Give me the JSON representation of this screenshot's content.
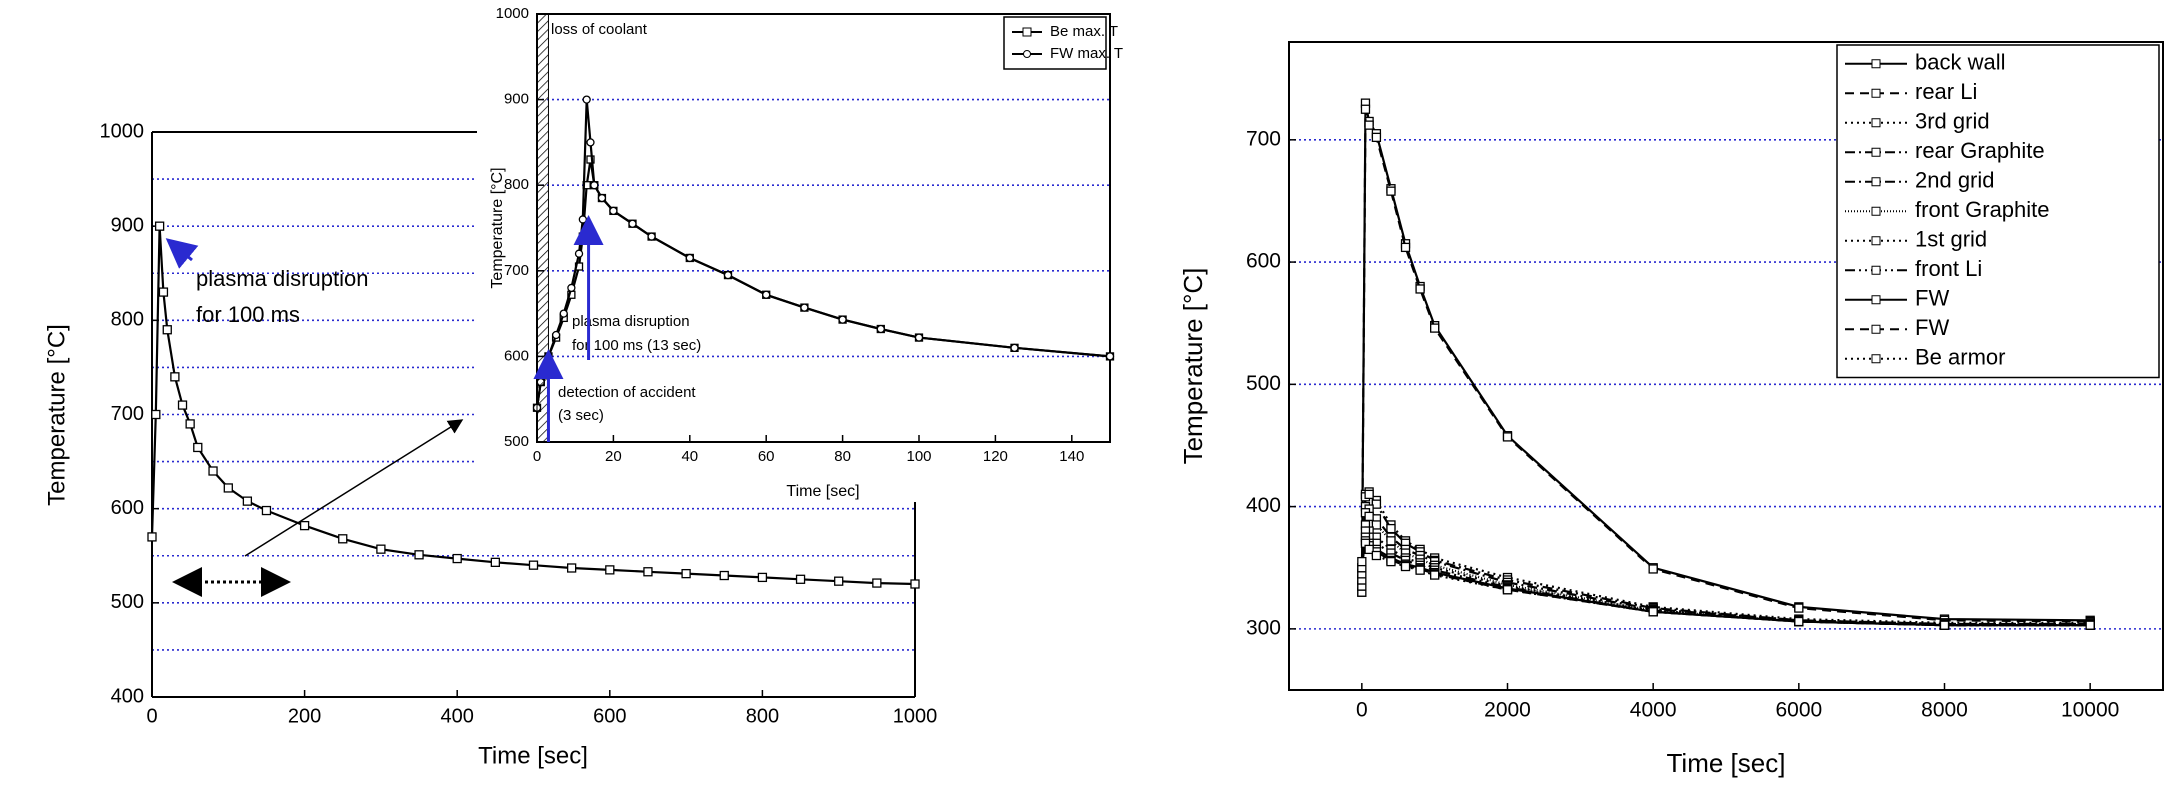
{
  "chart_data": [
    {
      "type": "line",
      "xlabel": "Time [sec]",
      "ylabel": "Temperature [°C]",
      "annotations": [
        "plasma disruption",
        "for 100 ms"
      ],
      "x": [
        0,
        5,
        10,
        15,
        20,
        30,
        40,
        50,
        60,
        80,
        100,
        125,
        150,
        200,
        250,
        300,
        350,
        400,
        450,
        500,
        550,
        600,
        650,
        700,
        750,
        800,
        850,
        900,
        950,
        1000
      ],
      "values": [
        570,
        700,
        900,
        830,
        790,
        740,
        710,
        690,
        665,
        640,
        622,
        608,
        598,
        582,
        568,
        557,
        551,
        547,
        543,
        540,
        537,
        535,
        533,
        531,
        529,
        527,
        525,
        523,
        521,
        520
      ],
      "color": "#000000",
      "xlim": [
        0,
        1000
      ],
      "xticks": [
        0,
        200,
        400,
        600,
        800,
        1000
      ],
      "ylim": [
        400,
        1000
      ],
      "yticks": [
        400,
        500,
        600,
        700,
        800,
        900,
        1000
      ],
      "ygrid": [
        450,
        500,
        550,
        600,
        650,
        700,
        750,
        800,
        850,
        900,
        950
      ]
    },
    {
      "type": "line",
      "xlabel": "Time [sec]",
      "ylabel": "Temperature [°C]",
      "annotations": [
        "loss of coolant",
        "plasma disruption",
        "for 100 ms (13 sec)",
        "detection of accident",
        "(3 sec)"
      ],
      "x": [
        0,
        1,
        3,
        5,
        7,
        9,
        11,
        12,
        13,
        14,
        15,
        17,
        20,
        25,
        30,
        40,
        50,
        60,
        70,
        80,
        90,
        100,
        125,
        150
      ],
      "series": [
        {
          "name": "Be max. T",
          "color": "#000000",
          "values": [
            540,
            570,
            600,
            622,
            645,
            672,
            705,
            740,
            800,
            830,
            800,
            785,
            770,
            755,
            740,
            715,
            695,
            672,
            657,
            643,
            632,
            622,
            610,
            600
          ]
        },
        {
          "name": "FW max. T",
          "color": "#000000",
          "values": [
            540,
            570,
            600,
            625,
            650,
            680,
            720,
            760,
            900,
            850,
            800,
            785,
            770,
            755,
            740,
            715,
            695,
            672,
            657,
            643,
            632,
            622,
            610,
            600
          ]
        }
      ],
      "xlim": [
        0,
        150
      ],
      "xticks": [
        0,
        20,
        40,
        60,
        80,
        100,
        120,
        140
      ],
      "ylim": [
        500,
        1000
      ],
      "yticks": [
        500,
        600,
        700,
        800,
        900,
        1000
      ],
      "ygrid": [
        600,
        700,
        800,
        900
      ],
      "legend": "top-right"
    },
    {
      "type": "line",
      "xlabel": "Time [sec]",
      "ylabel": "Temperature [°C]",
      "x": [
        0,
        50,
        100,
        200,
        400,
        600,
        800,
        1000,
        2000,
        4000,
        6000,
        8000,
        10000
      ],
      "series": [
        {
          "name": "back wall",
          "color": "#000000",
          "dash": "solid",
          "values": [
            330,
            730,
            715,
            705,
            660,
            615,
            580,
            548,
            458,
            350,
            318,
            308,
            307
          ]
        },
        {
          "name": "rear Li",
          "color": "#000000",
          "dash": "dash",
          "values": [
            330,
            725,
            712,
            702,
            658,
            612,
            578,
            546,
            457,
            349,
            317,
            307,
            306
          ]
        },
        {
          "name": "3rd grid",
          "color": "#000000",
          "dash": "dot",
          "values": [
            335,
            410,
            412,
            405,
            385,
            372,
            365,
            358,
            342,
            318,
            308,
            305,
            305
          ]
        },
        {
          "name": "rear Graphite",
          "color": "#000000",
          "dash": "dashdot",
          "values": [
            335,
            408,
            410,
            402,
            382,
            370,
            363,
            356,
            340,
            317,
            307,
            304,
            304
          ]
        },
        {
          "name": "2nd grid",
          "color": "#000000",
          "dash": "dashdot",
          "values": [
            340,
            400,
            398,
            390,
            375,
            365,
            360,
            355,
            338,
            316,
            307,
            304,
            304
          ]
        },
        {
          "name": "front Graphite",
          "color": "#000000",
          "dash": "shortdot",
          "values": [
            340,
            395,
            392,
            385,
            372,
            362,
            357,
            352,
            336,
            315,
            306,
            303,
            303
          ]
        },
        {
          "name": "1st grid",
          "color": "#000000",
          "dash": "dot",
          "values": [
            345,
            385,
            380,
            375,
            365,
            358,
            354,
            350,
            335,
            315,
            306,
            303,
            303
          ]
        },
        {
          "name": "front Li",
          "color": "#000000",
          "dash": "dashdotdot",
          "values": [
            345,
            380,
            375,
            370,
            362,
            356,
            352,
            348,
            334,
            314,
            306,
            303,
            303
          ]
        },
        {
          "name": "FW",
          "color": "#000000",
          "dash": "solid",
          "values": [
            350,
            375,
            370,
            365,
            358,
            353,
            350,
            346,
            333,
            314,
            306,
            303,
            303
          ]
        },
        {
          "name": "FW",
          "color": "#000000",
          "dash": "dash",
          "values": [
            350,
            372,
            368,
            363,
            356,
            352,
            349,
            345,
            332,
            314,
            306,
            303,
            303
          ]
        },
        {
          "name": "Be armor",
          "color": "#000000",
          "dash": "dot",
          "values": [
            355,
            370,
            365,
            360,
            355,
            351,
            348,
            344,
            332,
            314,
            306,
            303,
            303
          ]
        }
      ],
      "xlim": [
        -1000,
        11000
      ],
      "xticks": [
        0,
        2000,
        4000,
        6000,
        8000,
        10000
      ],
      "ylim": [
        250,
        780
      ],
      "yticks": [
        300,
        400,
        500,
        600,
        700
      ],
      "grid": true,
      "legend": "top-right"
    }
  ]
}
